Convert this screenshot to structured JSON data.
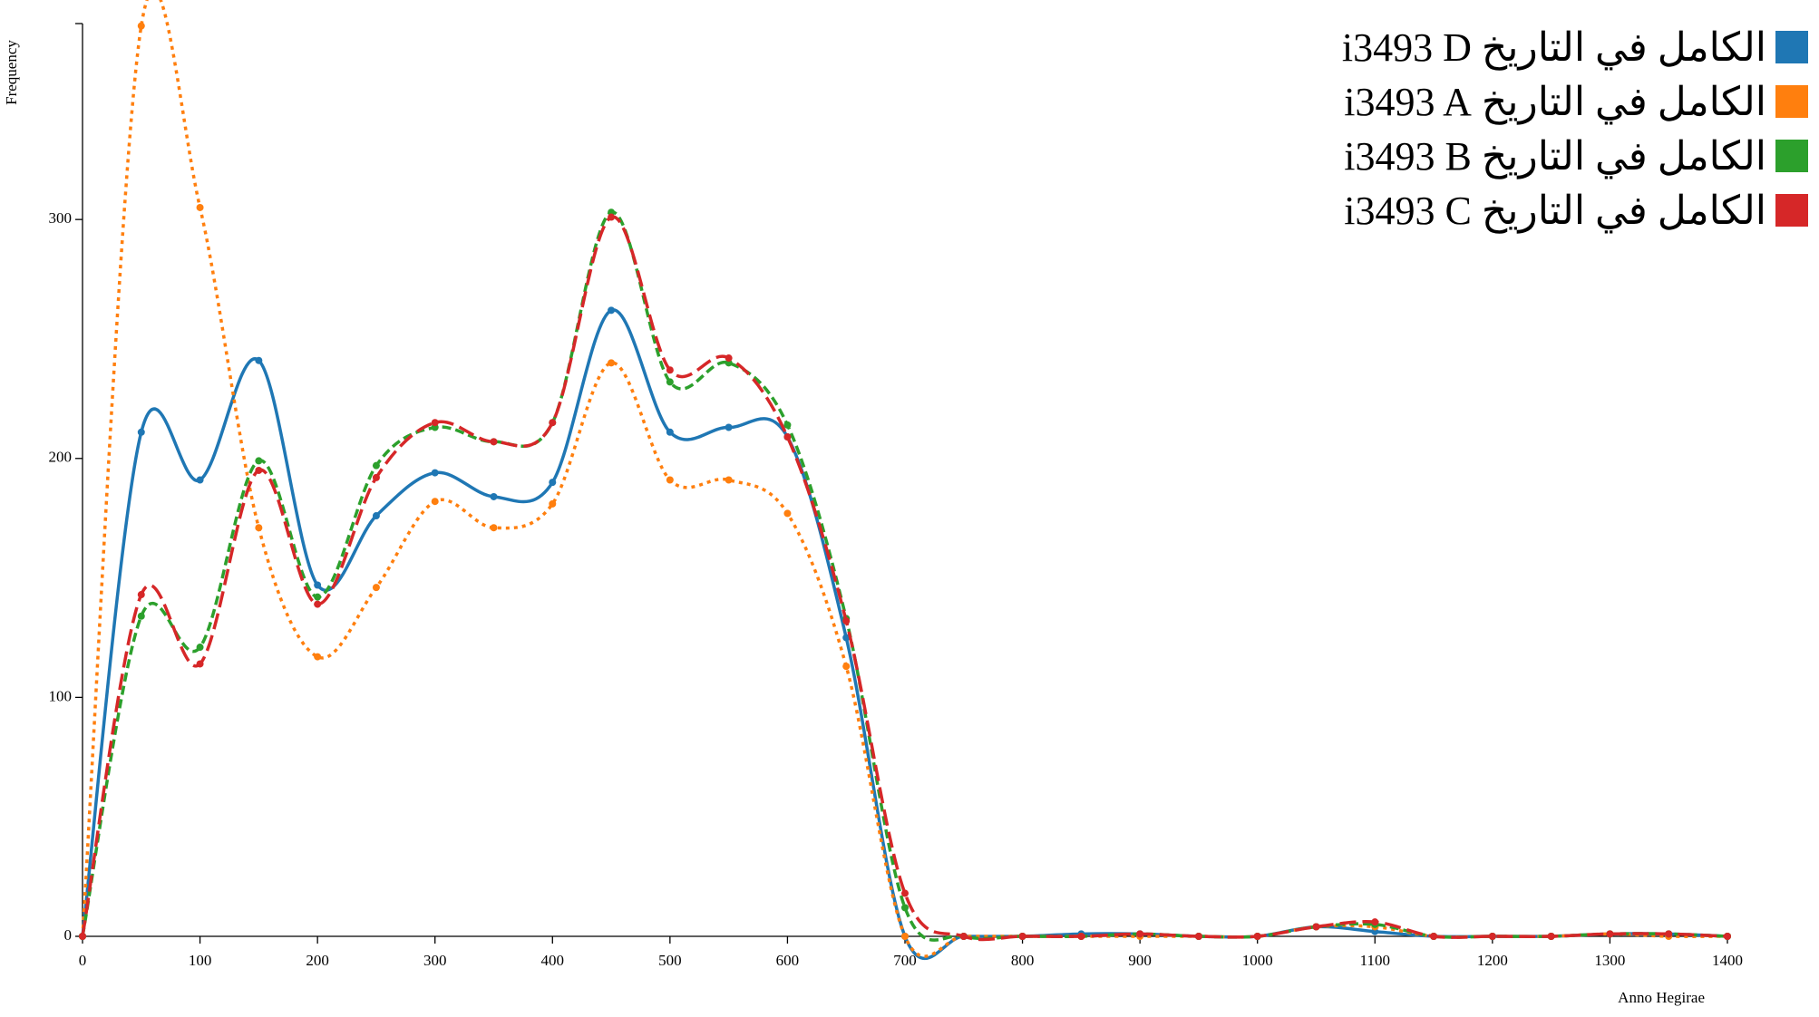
{
  "chart_data": {
    "type": "line",
    "x_label": "Anno Hegirae",
    "y_label": "Frequency",
    "x": [
      0,
      50,
      100,
      150,
      200,
      250,
      300,
      350,
      400,
      450,
      500,
      550,
      600,
      650,
      700,
      750,
      800,
      850,
      900,
      950,
      1000,
      1050,
      1100,
      1150,
      1200,
      1250,
      1300,
      1350,
      1400
    ],
    "series": [
      {
        "name": "الكامل في التاريخ i3493 D",
        "color": "#1f77b4",
        "values": [
          0,
          211,
          191,
          241,
          147,
          176,
          194,
          184,
          190,
          262,
          211,
          213,
          209,
          125,
          0,
          0,
          0,
          1,
          1,
          0,
          0,
          4,
          2,
          0,
          0,
          0,
          1,
          1,
          0
        ]
      },
      {
        "name": "الكامل في التاريخ i3493 A",
        "color": "#ff7f0e",
        "values": [
          0,
          381,
          305,
          171,
          117,
          146,
          182,
          171,
          181,
          240,
          191,
          191,
          177,
          113,
          0,
          0,
          0,
          0,
          0,
          0,
          0,
          4,
          4,
          0,
          0,
          0,
          1,
          0,
          0
        ]
      },
      {
        "name": "الكامل في التاريخ i3493 B",
        "color": "#2ca02c",
        "values": [
          0,
          134,
          121,
          199,
          142,
          197,
          213,
          207,
          215,
          303,
          232,
          240,
          214,
          133,
          12,
          0,
          0,
          0,
          1,
          0,
          0,
          4,
          5,
          0,
          0,
          0,
          1,
          1,
          0
        ]
      },
      {
        "name": "الكامل في التاريخ i3493 C",
        "color": "#d62728",
        "values": [
          0,
          143,
          114,
          195,
          139,
          192,
          215,
          207,
          215,
          301,
          237,
          242,
          209,
          132,
          18,
          0,
          0,
          0,
          1,
          0,
          0,
          4,
          6,
          0,
          0,
          0,
          1,
          1,
          0
        ]
      }
    ],
    "xlim": [
      0,
      1400
    ],
    "ylim": [
      0,
      382
    ],
    "xticks": [
      0,
      100,
      200,
      300,
      400,
      500,
      600,
      700,
      800,
      900,
      1000,
      1100,
      1200,
      1300,
      1400
    ],
    "yticks": [
      0,
      100,
      200,
      300
    ]
  }
}
